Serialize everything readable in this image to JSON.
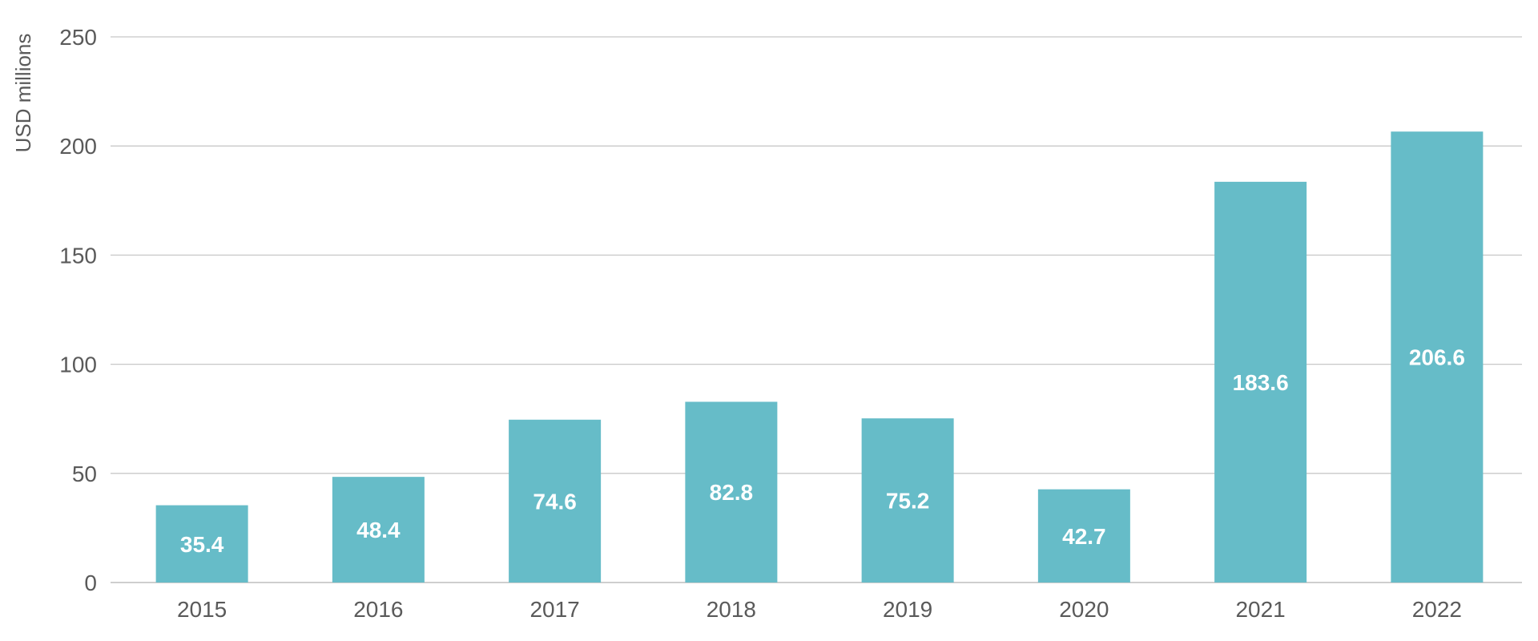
{
  "chart_data": {
    "type": "bar",
    "title": "",
    "xlabel": "",
    "ylabel": "USD millions",
    "categories": [
      "2015",
      "2016",
      "2017",
      "2018",
      "2019",
      "2020",
      "2021",
      "2022"
    ],
    "values": [
      35.4,
      48.4,
      74.6,
      82.8,
      75.2,
      42.7,
      183.6,
      206.6
    ],
    "data_labels": [
      "35.4",
      "48.4",
      "74.6",
      "82.8",
      "75.2",
      "42.7",
      "183.6",
      "206.6"
    ],
    "ylim": [
      0,
      250
    ],
    "yticks": [
      0,
      50,
      100,
      150,
      200,
      250
    ],
    "ytick_labels": [
      "0",
      "50",
      "100",
      "150",
      "200",
      "250"
    ],
    "grid": true,
    "legend": "none",
    "colors": {
      "bar": "#66bcc8",
      "grid": "#c8c8c8",
      "text": "#5a5a5a",
      "data_label": "#ffffff"
    }
  }
}
